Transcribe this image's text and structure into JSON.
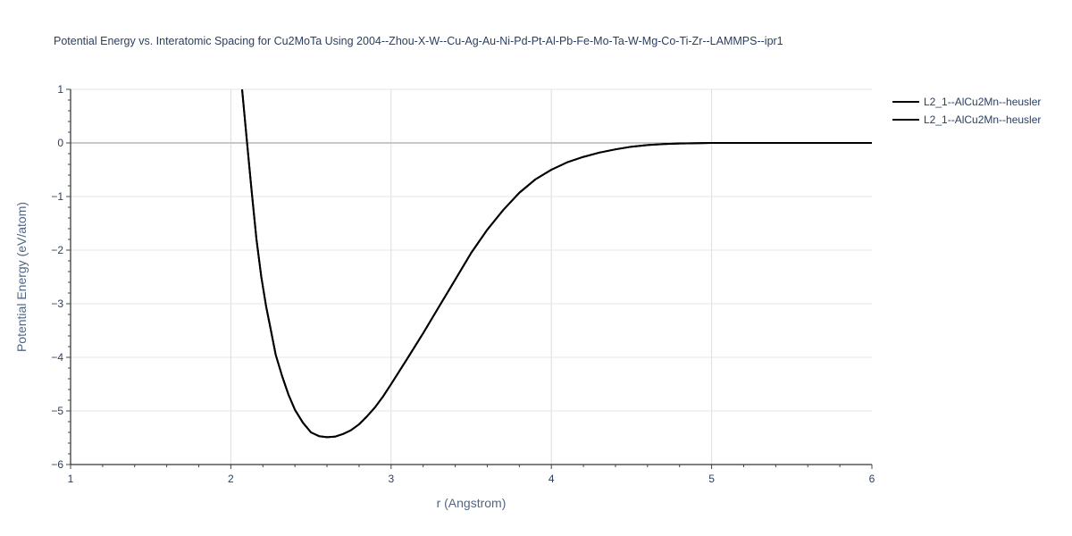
{
  "chart_data": {
    "type": "line",
    "title": "Potential Energy vs. Interatomic Spacing for Cu2MoTa Using 2004--Zhou-X-W--Cu-Ag-Au-Ni-Pd-Pt-Al-Pb-Fe-Mo-Ta-W-Mg-Co-Ti-Zr--LAMMPS--ipr1",
    "xlabel": "r (Angstrom)",
    "ylabel": "Potential Energy (eV/atom)",
    "xlim": [
      1,
      6
    ],
    "ylim": [
      -6,
      1
    ],
    "x_ticks": [
      "1",
      "2",
      "3",
      "4",
      "5",
      "6"
    ],
    "y_ticks": [
      "1",
      "0",
      "−1",
      "−2",
      "−3",
      "−4",
      "−5",
      "−6"
    ],
    "grid": true,
    "legend_position": "top-right",
    "series": [
      {
        "name": "L2_1--AlCu2Mn--heusler",
        "color": "#000000",
        "x": [
          2.07,
          2.1,
          2.13,
          2.16,
          2.19,
          2.22,
          2.25,
          2.28,
          2.32,
          2.36,
          2.4,
          2.45,
          2.5,
          2.55,
          2.6,
          2.65,
          2.7,
          2.75,
          2.8,
          2.85,
          2.9,
          2.95,
          3.0,
          3.1,
          3.2,
          3.3,
          3.4,
          3.5,
          3.6,
          3.7,
          3.8,
          3.9,
          4.0,
          4.1,
          4.2,
          4.3,
          4.4,
          4.5,
          4.6,
          4.7,
          4.8,
          5.0,
          5.2,
          5.5,
          6.0
        ],
        "y": [
          1.0,
          0.05,
          -0.9,
          -1.8,
          -2.5,
          -3.05,
          -3.5,
          -3.95,
          -4.35,
          -4.7,
          -4.98,
          -5.22,
          -5.4,
          -5.47,
          -5.49,
          -5.48,
          -5.43,
          -5.36,
          -5.25,
          -5.1,
          -4.93,
          -4.73,
          -4.5,
          -4.03,
          -3.55,
          -3.05,
          -2.55,
          -2.05,
          -1.62,
          -1.25,
          -0.93,
          -0.68,
          -0.5,
          -0.36,
          -0.26,
          -0.18,
          -0.12,
          -0.07,
          -0.04,
          -0.02,
          -0.01,
          0.0,
          0.0,
          0.0,
          0.0
        ]
      },
      {
        "name": "L2_1--AlCu2Mn--heusler",
        "color": "#000000",
        "x": [
          2.07,
          2.1,
          2.13,
          2.16,
          2.19,
          2.22,
          2.25,
          2.28,
          2.32,
          2.36,
          2.4,
          2.45,
          2.5,
          2.55,
          2.6,
          2.65,
          2.7,
          2.75,
          2.8,
          2.85,
          2.9,
          2.95,
          3.0,
          3.1,
          3.2,
          3.3,
          3.4,
          3.5,
          3.6,
          3.7,
          3.8,
          3.9,
          4.0,
          4.1,
          4.2,
          4.3,
          4.4,
          4.5,
          4.6,
          4.7,
          4.8,
          5.0,
          5.2,
          5.5,
          6.0
        ],
        "y": [
          1.0,
          0.05,
          -0.9,
          -1.8,
          -2.5,
          -3.05,
          -3.5,
          -3.95,
          -4.35,
          -4.7,
          -4.98,
          -5.22,
          -5.4,
          -5.47,
          -5.49,
          -5.48,
          -5.43,
          -5.36,
          -5.25,
          -5.1,
          -4.93,
          -4.73,
          -4.5,
          -4.03,
          -3.55,
          -3.05,
          -2.55,
          -2.05,
          -1.62,
          -1.25,
          -0.93,
          -0.68,
          -0.5,
          -0.36,
          -0.26,
          -0.18,
          -0.12,
          -0.07,
          -0.04,
          -0.02,
          -0.01,
          0.0,
          0.0,
          0.0,
          0.0
        ]
      }
    ]
  }
}
